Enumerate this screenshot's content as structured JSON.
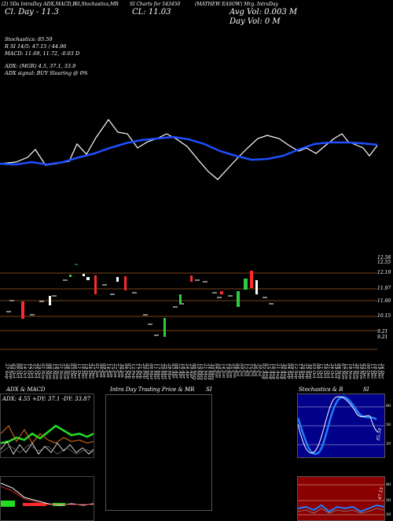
{
  "header": {
    "line1a": "(2) 5Da IntraDay ADX,MACD,R",
    "line1b": "SI,Stochastics,MR",
    "line1c": "SI Charts for 543450",
    "line1d": "(MATHEW EASOW) Mrg. IntraDay",
    "line2a": "Cl. Day - 11.3",
    "line2b": "CL: 11.03",
    "line2c": "Avg Vol: 0.003 M",
    "line2d": "Day Vol: 0   M"
  },
  "indicators": {
    "stochastics": "Stochastics: 85.59",
    "rsi": "R                SI 14/5: 47.15 / 44.96",
    "macd": "MACD: 11.69,  11.72,  -0.03 D",
    "adx": "ADX:                              (MGR) 4.5,  37.1,  33.9",
    "adx_signal": "ADX  signal:                                   BUY Sloaring @ 0%"
  },
  "price_levels": [
    "12.58",
    "12.55",
    "12.19",
    "11.97",
    "11.60",
    "10.15",
    "9.21",
    "9.21"
  ],
  "dates": [
    "27 Sep",
    "30 Sep",
    "03 Oct",
    "06 Oct",
    "09 Oct",
    "14 Oct",
    "17 Oct",
    "22 Oct",
    "25 Oct",
    "29 Oct",
    "01 Nov",
    "05 Nov",
    "08 Nov",
    "13 Nov",
    "18 Nov",
    "21 Nov",
    "25 Nov",
    "28 Nov",
    "03 Dec",
    "06 Dec",
    "11 Dec",
    "16 Dec",
    "19 Dec",
    "24 Dec",
    "27 Dec",
    "01 Jan",
    "06 Jan",
    "09 Jan",
    "14 Jan",
    "17 Jan",
    "22 Jan",
    "27 Jan",
    "30 Jan",
    "04 Feb",
    "07 Feb",
    "12 Feb",
    "17 Feb",
    "21 Feb",
    "26 Feb",
    "03 Mar",
    "06 Mar",
    "11 Mar",
    "17 Mar",
    "20 Mar",
    "25 Mar",
    "28 Mar",
    "03 Apr",
    "08 Apr",
    "12 Apr",
    "18 Apr",
    "24 Apr",
    "29 Apr",
    "06 May",
    "10 May",
    "15 May",
    "21 May",
    "24 May",
    "30 May",
    "04 Jun",
    "10 Jun",
    "14 Jun",
    "19 Jun",
    "25 Jun",
    "28 Jun",
    "04 Jul",
    "09 Jul",
    "12 Jul",
    "17 Jul",
    "22 Jul",
    "26 Jul",
    "30 Jul",
    "02 Aug",
    "07 Aug",
    "12 Aug",
    "16 Aug",
    "21 Aug",
    "26 Aug",
    "30 Aug",
    "04 Sep",
    "09 Sep",
    "12 Sep",
    "17 Sep",
    "20 Sep",
    "25 Sep",
    "30 Sep",
    "03 Oct",
    "08 Oct",
    "11 Oct",
    "16 Oct",
    "21 Oct",
    "24 Oct",
    "29 Oct",
    "04 Nov",
    "07 Nov",
    "12 Nov",
    "18 Nov",
    "21 Nov",
    "26 Nov",
    "29 Nov",
    "03 Dec",
    "06 Dec",
    "11 Dec",
    "16 Dec",
    "19 Dec",
    "24 Dec"
  ],
  "panels": {
    "adx_macd_title": "ADX  & MACD",
    "adx_readout": "ADX: 4.55  +DY: 37.1  -DY: 33.87",
    "mrsi_title": "Intra  Day Trading Price  & MR",
    "mrsi_title2": "SI",
    "stoch_title": "Stochastics & R",
    "stoch_title2": "SI",
    "stoch_value": "85.59",
    "rsi_value": "47.15",
    "stoch_levels": [
      "80",
      "50",
      "20"
    ],
    "rsi_levels": [
      "80",
      "50",
      "20"
    ]
  },
  "colors": {
    "bg": "#000000",
    "white_line": "#ffffff",
    "blue_line": "#1f4fff",
    "up_candle": "#2ecc40",
    "down_candle": "#ff2a2a",
    "level_line": "#a05a20",
    "stoch_bg": "#00008b",
    "rsi_bg": "#8b0000",
    "adx_green": "#22dd22",
    "adx_orange": "#e07020"
  }
}
